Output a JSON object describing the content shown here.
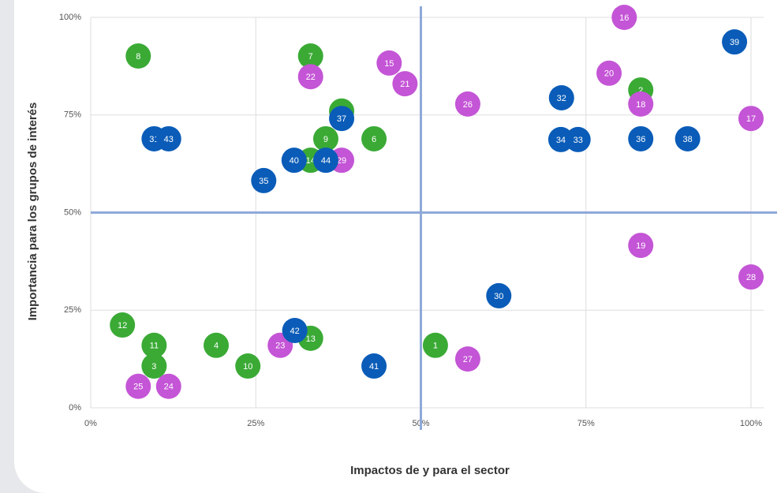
{
  "chart_data": {
    "type": "scatter",
    "x_label": "Impactos de y para el sector",
    "y_label": "Importancia para los grupos de interés",
    "xlim": [
      0,
      100
    ],
    "ylim": [
      0,
      100
    ],
    "xticks": [
      {
        "value": 0,
        "label": "0%"
      },
      {
        "value": 25,
        "label": "25%"
      },
      {
        "value": 50,
        "label": "50%"
      },
      {
        "value": 75,
        "label": "75%"
      },
      {
        "value": 100,
        "label": "100%"
      }
    ],
    "yticks": [
      {
        "value": 0,
        "label": "0%"
      },
      {
        "value": 25,
        "label": "25%"
      },
      {
        "value": 50,
        "label": "50%"
      },
      {
        "value": 75,
        "label": "75%"
      },
      {
        "value": 100,
        "label": "100%"
      }
    ],
    "grid": true,
    "x_divider": 50,
    "y_divider": 50,
    "divider_color": "#8fa9d9",
    "series": [
      {
        "color": "#3aaa35",
        "labels": [
          "1",
          "2",
          "3",
          "4",
          "5",
          "6",
          "7",
          "8",
          "9",
          "10",
          "11",
          "12",
          "13",
          "14"
        ],
        "x": [
          52.2,
          83.3,
          9.6,
          19.0,
          38.0,
          42.9,
          33.3,
          7.2,
          35.6,
          23.8,
          9.6,
          4.8,
          33.3,
          33.3
        ],
        "values": [
          16.0,
          81.4,
          10.7,
          16.0,
          76.0,
          68.9,
          90.1,
          90.1,
          68.9,
          10.7,
          16.0,
          21.2,
          17.8,
          63.4
        ]
      },
      {
        "color": "#c455d6",
        "labels": [
          "15",
          "16",
          "17",
          "18",
          "19",
          "20",
          "21",
          "22",
          "23",
          "24",
          "25",
          "26",
          "27",
          "28",
          "29"
        ],
        "x": [
          45.2,
          80.8,
          100,
          83.3,
          83.3,
          78.5,
          47.6,
          33.3,
          28.7,
          11.8,
          7.2,
          57.1,
          57.1,
          100,
          38.0
        ],
        "values": [
          88.3,
          100,
          74.1,
          77.8,
          41.6,
          85.7,
          83.0,
          84.8,
          16.0,
          5.5,
          5.5,
          77.8,
          12.5,
          33.5,
          63.4
        ]
      },
      {
        "color": "#0a5cb8",
        "labels": [
          "30",
          "31",
          "32",
          "33",
          "34",
          "35",
          "36",
          "37",
          "38",
          "39",
          "40",
          "41",
          "42",
          "43",
          "44"
        ],
        "x": [
          61.8,
          9.6,
          71.3,
          73.8,
          71.2,
          26.2,
          83.3,
          38.0,
          90.4,
          97.5,
          30.8,
          42.9,
          30.9,
          11.8,
          35.6
        ],
        "values": [
          28.7,
          68.9,
          79.4,
          68.7,
          68.7,
          58.2,
          68.9,
          74.1,
          68.9,
          93.7,
          63.4,
          10.7,
          19.8,
          68.9,
          63.4
        ]
      }
    ]
  }
}
